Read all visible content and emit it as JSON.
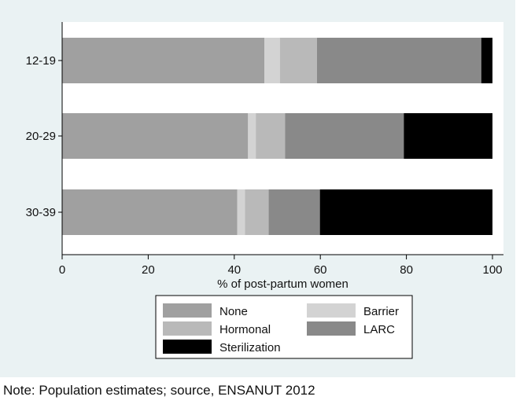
{
  "chart_data": {
    "type": "bar",
    "orientation": "horizontal",
    "stacked": true,
    "categories": [
      "12-19",
      "20-29",
      "30-39"
    ],
    "series": [
      {
        "name": "None",
        "color": "#a0a0a0",
        "values": [
          47.0,
          43.2,
          40.7
        ]
      },
      {
        "name": "Barrier",
        "color": "#d3d3d3",
        "values": [
          3.6,
          1.8,
          1.8
        ]
      },
      {
        "name": "Hormonal",
        "color": "#b9b9b9",
        "values": [
          8.6,
          6.8,
          5.5
        ]
      },
      {
        "name": "LARC",
        "color": "#898989",
        "values": [
          38.2,
          27.6,
          11.9
        ]
      },
      {
        "name": "Sterilization",
        "color": "#000000",
        "values": [
          2.6,
          20.6,
          40.1
        ]
      }
    ],
    "xlabel": "% of post-partum women",
    "xlim": [
      0,
      100
    ],
    "xticks": [
      "0",
      "20",
      "40",
      "60",
      "80",
      "100"
    ],
    "grid": false,
    "legend_position": "bottom",
    "legend_order": [
      "None",
      "Barrier",
      "Hormonal",
      "LARC",
      "Sterilization"
    ]
  },
  "note": "Note: Population estimates; source, ENSANUT 2012",
  "colors": {
    "figure_background": "#eaf2f3",
    "plot_background": "#ffffff"
  }
}
